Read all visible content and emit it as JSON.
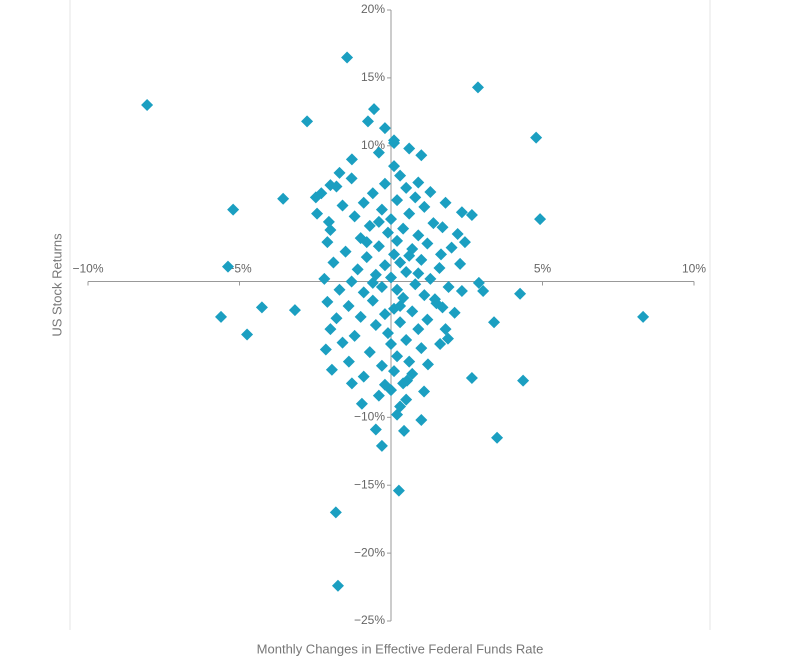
{
  "chart_data": {
    "type": "scatter",
    "x_label": "Monthly Changes in Effective Federal Funds Rate",
    "y_label": "US Stock Returns",
    "color": "#1b9fc1",
    "xlim": [
      -10,
      10
    ],
    "ylim": [
      -25,
      20
    ],
    "xticks": [
      {
        "value": -10,
        "label": "−10%"
      },
      {
        "value": -5,
        "label": "−5%"
      },
      {
        "value": 5,
        "label": "5%"
      },
      {
        "value": 10,
        "label": "10%"
      }
    ],
    "yticks": [
      {
        "value": 20,
        "label": "20%"
      },
      {
        "value": 15,
        "label": "15%"
      },
      {
        "value": 10,
        "label": "10%"
      },
      {
        "value": -10,
        "label": "−10%"
      },
      {
        "value": -15,
        "label": "−15%"
      },
      {
        "value": -20,
        "label": "−20%"
      },
      {
        "value": -25,
        "label": "−25%"
      }
    ],
    "x": [
      -8.05,
      -1.45,
      2.87,
      4.79,
      -2.77,
      -0.56,
      -5.21,
      -5.38,
      -3.56,
      4.92,
      -5.61,
      -4.26,
      -4.75,
      -3.17,
      8.32,
      4.26,
      3.4,
      4.36,
      3.5,
      2.67,
      0.26,
      -1.82,
      -1.75,
      -0.3,
      0.43,
      -0.5,
      1.0,
      -0.96,
      2.34,
      2.67,
      2.9,
      3.04,
      2.34,
      -2.15,
      -2.0,
      -1.95,
      -1.29,
      -1.39,
      1.0,
      -1.29,
      -0.76,
      -0.2,
      0.1,
      -2.0,
      -2.48,
      -2.44,
      -2.05,
      -2.1,
      2.2,
      2.44,
      1.65,
      2.28,
      1.45,
      1.88,
      1.62,
      1.22,
      1.09,
      0.53,
      0.1,
      0.3,
      -0.2,
      0.5,
      -0.6,
      0.8,
      0.2,
      -0.9,
      1.1,
      -0.3,
      0.6,
      -1.2,
      0.0,
      1.4,
      -0.7,
      0.4,
      -0.1,
      0.9,
      -1.0,
      0.2,
      1.2,
      -0.4,
      0.7,
      -1.5,
      0.1,
      -0.8,
      1.0,
      0.3,
      -0.2,
      1.6,
      -1.1,
      0.5,
      -0.5,
      0.0,
      1.3,
      -1.3,
      0.8,
      -0.3,
      0.2,
      -0.9,
      1.1,
      0.4,
      -0.6,
      1.5,
      -1.4,
      0.1,
      0.7,
      -0.2,
      -1.0,
      1.2,
      0.3,
      -0.5,
      0.9,
      -0.1,
      -1.2,
      0.5,
      0.0,
      1.0,
      -0.7,
      0.2,
      0.6,
      -0.3,
      0.1,
      -0.9,
      0.4,
      0.0,
      -0.4,
      0.3,
      0.2,
      -1.7,
      -1.8,
      -2.3,
      -1.6,
      -2.0,
      -1.9,
      -2.2,
      -1.7,
      -2.1,
      -1.8,
      -1.6,
      1.8,
      1.7,
      2.0,
      1.9,
      1.7,
      2.1,
      1.8,
      0.6,
      0.1,
      -0.4,
      0.9,
      -1.3,
      1.3,
      -0.8,
      0.6,
      -0.6,
      0.9,
      -0.4,
      0.3,
      0.7,
      -0.2,
      0.5
    ],
    "values": [
      13.0,
      16.5,
      14.3,
      10.6,
      11.8,
      12.7,
      5.3,
      1.1,
      6.1,
      4.6,
      -2.6,
      -1.9,
      -3.9,
      -2.1,
      -2.6,
      -0.9,
      -3.0,
      -7.3,
      -11.5,
      -7.1,
      -15.4,
      -17.0,
      -22.4,
      -12.1,
      -11.0,
      -10.9,
      -10.2,
      -9.0,
      5.1,
      4.9,
      -0.1,
      -0.7,
      -0.7,
      -5.0,
      -3.5,
      -6.5,
      -7.5,
      -5.9,
      9.3,
      9.0,
      11.8,
      11.3,
      10.4,
      7.1,
      6.2,
      5.0,
      4.4,
      2.9,
      3.5,
      2.9,
      2.0,
      1.3,
      -1.3,
      -4.2,
      -4.6,
      -6.1,
      -8.1,
      -7.3,
      8.5,
      7.8,
      7.2,
      6.9,
      6.5,
      6.2,
      6.0,
      5.8,
      5.5,
      5.3,
      5.0,
      4.8,
      4.6,
      4.3,
      4.1,
      3.9,
      3.6,
      3.4,
      3.2,
      3.0,
      2.8,
      2.6,
      2.4,
      2.2,
      2.0,
      1.8,
      1.6,
      1.4,
      1.2,
      1.0,
      0.9,
      0.7,
      0.5,
      0.3,
      0.2,
      0.0,
      -0.2,
      -0.4,
      -0.6,
      -0.8,
      -1.0,
      -1.2,
      -1.4,
      -1.6,
      -1.8,
      -2.0,
      -2.2,
      -2.4,
      -2.6,
      -2.8,
      -3.0,
      -3.2,
      -3.5,
      -3.8,
      -4.0,
      -4.3,
      -4.6,
      -4.9,
      -5.2,
      -5.5,
      -5.9,
      -6.2,
      -6.6,
      -7.0,
      -7.5,
      -8.0,
      -8.4,
      -9.2,
      -9.8,
      8.0,
      7.0,
      6.5,
      5.6,
      3.8,
      1.4,
      0.2,
      -0.6,
      -1.5,
      -2.7,
      -4.5,
      5.8,
      4.0,
      2.5,
      -0.4,
      -1.9,
      -2.3,
      -3.5,
      9.8,
      10.2,
      9.5,
      7.3,
      7.6,
      6.6,
      2.9,
      1.9,
      -0.1,
      0.6,
      4.4,
      -1.8,
      -6.8,
      -7.6,
      -8.7
    ]
  }
}
